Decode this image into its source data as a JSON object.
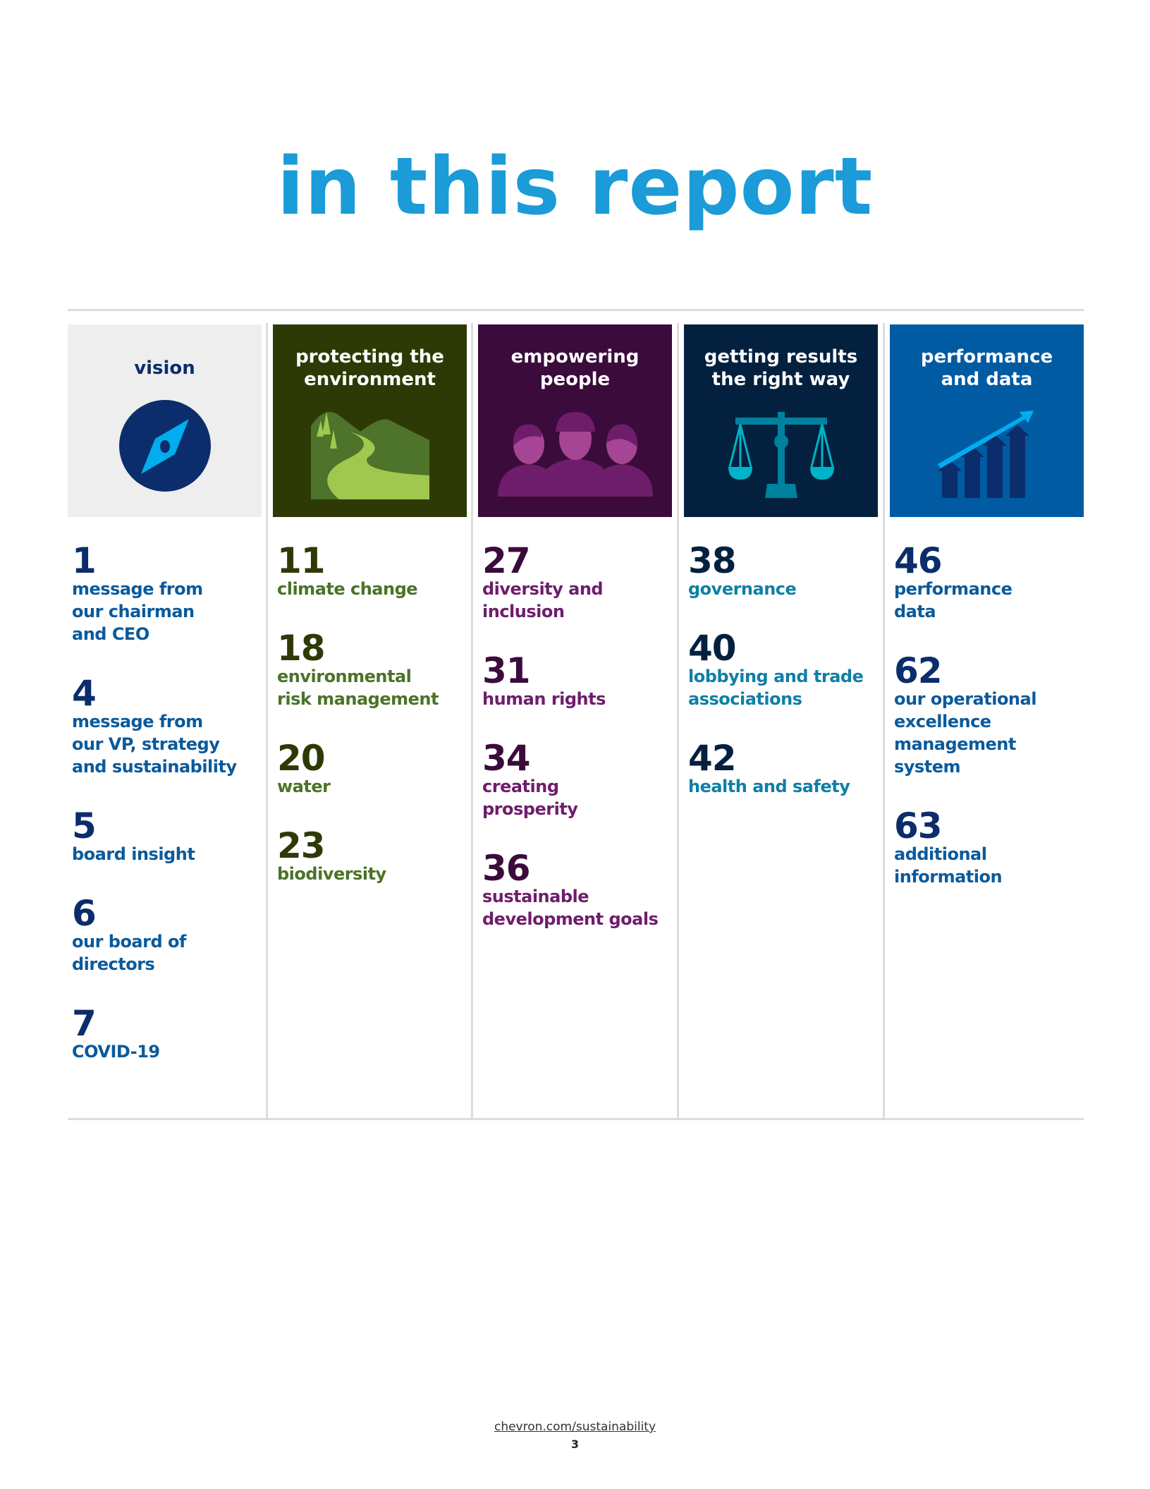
{
  "title": "in this report",
  "columns": [
    {
      "heading": "vision",
      "tile_bg": "#eeeeee",
      "heading_color": "#0c2d6b",
      "num_color": "#0c2d6b",
      "label_color": "#0a5a9c",
      "icon": "compass-icon",
      "entries": [
        {
          "page": "1",
          "lines": [
            "message from",
            "our chairman",
            "and CEO"
          ]
        },
        {
          "page": "4",
          "lines": [
            "message from",
            "our VP, strategy",
            "and sustainability"
          ]
        },
        {
          "page": "5",
          "lines": [
            "board insight"
          ]
        },
        {
          "page": "6",
          "lines": [
            "our board of",
            "directors"
          ]
        },
        {
          "page": "7",
          "lines": [
            "COVID-19"
          ]
        }
      ]
    },
    {
      "heading_lines": [
        "protecting the",
        "environment"
      ],
      "tile_bg": "#2e3a06",
      "num_color": "#2e3a06",
      "label_color": "#4a7328",
      "icon": "landscape-icon",
      "entries": [
        {
          "page": "11",
          "lines": [
            "climate change"
          ]
        },
        {
          "page": "18",
          "lines": [
            "environmental",
            "risk management"
          ]
        },
        {
          "page": "20",
          "lines": [
            "water"
          ]
        },
        {
          "page": "23",
          "lines": [
            "biodiversity"
          ]
        }
      ]
    },
    {
      "heading_lines": [
        "empowering",
        "people"
      ],
      "tile_bg": "#3b0b3c",
      "num_color": "#3b0b3c",
      "label_color": "#6e1d6b",
      "icon": "people-icon",
      "entries": [
        {
          "page": "27",
          "lines": [
            "diversity and",
            "inclusion"
          ]
        },
        {
          "page": "31",
          "lines": [
            "human rights"
          ]
        },
        {
          "page": "34",
          "lines": [
            "creating",
            "prosperity"
          ]
        },
        {
          "page": "36",
          "lines": [
            "sustainable",
            "development goals"
          ]
        }
      ]
    },
    {
      "heading_lines": [
        "getting results",
        "the right way"
      ],
      "tile_bg": "#03213f",
      "num_color": "#03213f",
      "label_color": "#0f7fa6",
      "icon": "scales-icon",
      "entries": [
        {
          "page": "38",
          "lines": [
            "governance"
          ]
        },
        {
          "page": "40",
          "lines": [
            "lobbying and trade",
            "associations"
          ]
        },
        {
          "page": "42",
          "lines": [
            "health and safety"
          ]
        }
      ]
    },
    {
      "heading_lines": [
        "performance",
        "and data"
      ],
      "tile_bg": "#005ba3",
      "num_color": "#0c2d6b",
      "label_color": "#0a5a9c",
      "icon": "growth-chart-icon",
      "entries": [
        {
          "page": "46",
          "lines": [
            "performance",
            "data"
          ]
        },
        {
          "page": "62",
          "lines": [
            "our operational",
            "excellence",
            "management",
            "system"
          ]
        },
        {
          "page": "63",
          "lines": [
            "additional",
            "information"
          ]
        }
      ]
    }
  ],
  "footer": {
    "link": "chevron.com/sustainability",
    "page_number": "3"
  }
}
